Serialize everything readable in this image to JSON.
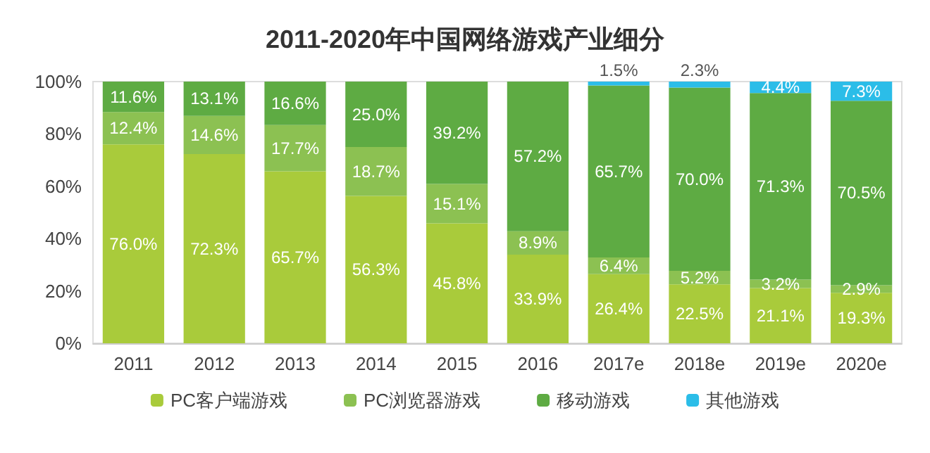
{
  "chart_data": {
    "type": "bar",
    "title": "2011-2020年中国网络游戏产业细分",
    "stacked": true,
    "grid": false,
    "legend": "bottom",
    "categories": [
      "2011",
      "2012",
      "2013",
      "2014",
      "2015",
      "2016",
      "2017e",
      "2018e",
      "2019e",
      "2020e"
    ],
    "ylim": [
      0,
      100
    ],
    "yticks": [
      {
        "value": 0,
        "label": "0%"
      },
      {
        "value": 20,
        "label": "20%"
      },
      {
        "value": 40,
        "label": "40%"
      },
      {
        "value": 60,
        "label": "60%"
      },
      {
        "value": 80,
        "label": "80%"
      },
      {
        "value": 100,
        "label": "100%"
      }
    ],
    "series": [
      {
        "name": "PC客户端游戏",
        "color": "#a9cb3b",
        "values": [
          76.0,
          72.3,
          65.7,
          56.3,
          45.8,
          33.9,
          26.4,
          22.5,
          21.1,
          19.3
        ],
        "value_labels": [
          "76.0%",
          "72.3%",
          "65.7%",
          "56.3%",
          "45.8%",
          "33.9%",
          "26.4%",
          "22.5%",
          "21.1%",
          "19.3%"
        ]
      },
      {
        "name": "PC浏览器游戏",
        "color": "#8cc152",
        "values": [
          12.4,
          14.6,
          17.7,
          18.7,
          15.1,
          8.9,
          6.4,
          5.2,
          3.2,
          2.9
        ],
        "value_labels": [
          "12.4%",
          "14.6%",
          "17.7%",
          "18.7%",
          "15.1%",
          "8.9%",
          "6.4%",
          "5.2%",
          "3.2%",
          "2.9%"
        ]
      },
      {
        "name": "移动游戏",
        "color": "#5eab43",
        "values": [
          11.6,
          13.1,
          16.6,
          25.0,
          39.2,
          57.2,
          65.7,
          70.0,
          71.3,
          70.5
        ],
        "value_labels": [
          "11.6%",
          "13.1%",
          "16.6%",
          "25.0%",
          "39.2%",
          "57.2%",
          "65.7%",
          "70.0%",
          "71.3%",
          "70.5%"
        ]
      },
      {
        "name": "其他游戏",
        "color": "#2bbde8",
        "values": [
          null,
          null,
          null,
          null,
          null,
          null,
          1.5,
          2.3,
          4.4,
          7.3
        ],
        "value_labels": [
          null,
          null,
          null,
          null,
          null,
          null,
          "1.5%",
          "2.3%",
          "4.4%",
          "7.3%"
        ]
      }
    ]
  }
}
